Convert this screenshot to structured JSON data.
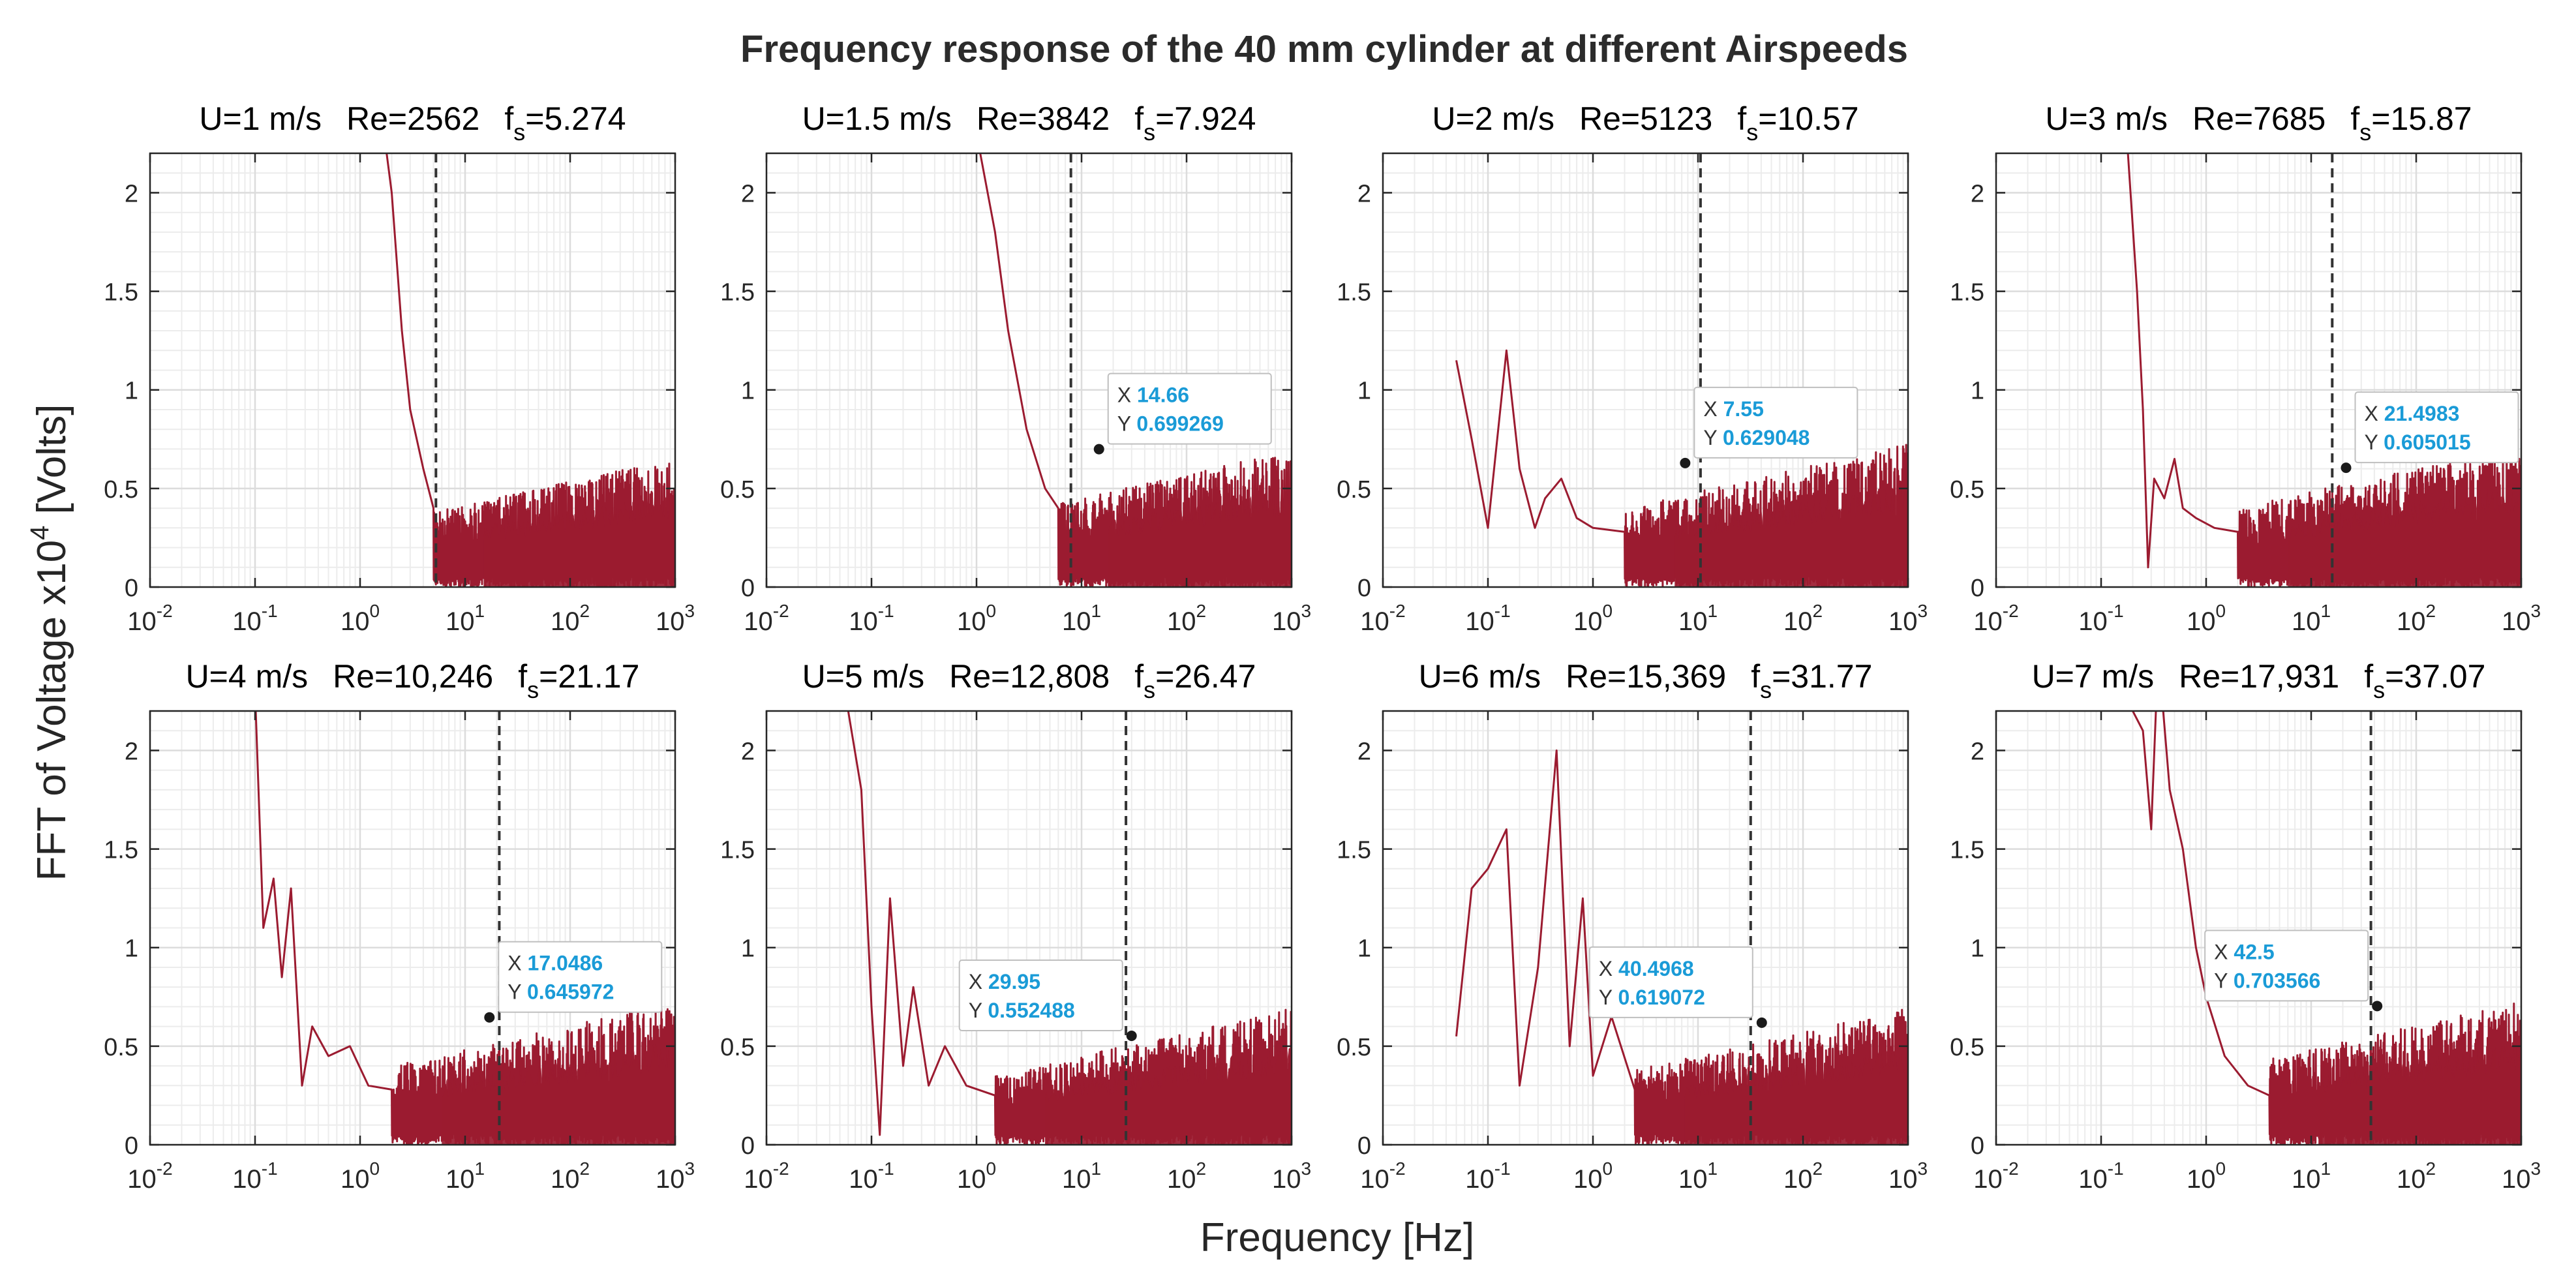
{
  "colors": {
    "line": "#9b1b30",
    "tip_value": "#1a9bd7",
    "tip_key": "#333333",
    "grid": "#dcdcdc",
    "axis": "#262626"
  },
  "chart_data": {
    "type": "line",
    "title": "Frequency response of the 40 mm cylinder at different Airspeeds",
    "xlabel": "Frequency [Hz]",
    "ylabel": {
      "pre": "FFT of Voltage x10",
      "sup": "4",
      "post": " [Volts]"
    },
    "xscale": "log",
    "xlim": [
      0.01,
      1000
    ],
    "ylim": [
      0,
      2.2
    ],
    "xticks": [
      {
        "b": "10",
        "e": "-2"
      },
      {
        "b": "10",
        "e": "-1"
      },
      {
        "b": "10",
        "e": "0"
      },
      {
        "b": "10",
        "e": "1"
      },
      {
        "b": "10",
        "e": "2"
      },
      {
        "b": "10",
        "e": "3"
      }
    ],
    "yticks": [
      "0",
      "0.5",
      "1",
      "1.5",
      "2"
    ],
    "panels": [
      {
        "speed": "U=1 m/s",
        "re": "Re=2562",
        "fs_val": "=5.274",
        "fs": 5.274,
        "tip": null,
        "low": [
          [
            0.8,
            3.0
          ],
          [
            1.0,
            2.9
          ],
          [
            1.3,
            2.6
          ],
          [
            1.6,
            2.4
          ],
          [
            2.0,
            2.0
          ],
          [
            2.5,
            1.3
          ],
          [
            3.0,
            0.9
          ],
          [
            4.0,
            0.6
          ],
          [
            5.0,
            0.4
          ]
        ],
        "noise": 0.18
      },
      {
        "speed": "U=1.5 m/s",
        "re": "Re=3842",
        "fs_val": "=7.924",
        "fs": 7.924,
        "tip": {
          "x": "14.66",
          "y": "0.699269",
          "fx": 14.66,
          "fy": 0.699269
        },
        "low": [
          [
            0.3,
            3.0
          ],
          [
            0.45,
            2.9
          ],
          [
            0.6,
            2.8
          ],
          [
            0.8,
            2.7
          ],
          [
            1.0,
            2.3
          ],
          [
            1.5,
            1.8
          ],
          [
            2.0,
            1.3
          ],
          [
            3.0,
            0.8
          ],
          [
            4.5,
            0.5
          ],
          [
            6.0,
            0.4
          ]
        ],
        "noise": 0.2
      },
      {
        "speed": "U=2 m/s",
        "re": "Re=5123",
        "fs_val": "=10.57",
        "fs": 10.57,
        "tip": {
          "x": "7.55",
          "y": "0.629048",
          "fx": 7.55,
          "fy": 0.629048
        },
        "low": [
          [
            0.05,
            1.15
          ],
          [
            0.07,
            0.75
          ],
          [
            0.1,
            0.3
          ],
          [
            0.15,
            1.2
          ],
          [
            0.2,
            0.6
          ],
          [
            0.28,
            0.3
          ],
          [
            0.35,
            0.45
          ],
          [
            0.5,
            0.55
          ],
          [
            0.7,
            0.35
          ],
          [
            1.0,
            0.3
          ],
          [
            2.0,
            0.28
          ]
        ],
        "noise": 0.22
      },
      {
        "speed": "U=3 m/s",
        "re": "Re=7685",
        "fs_val": "=15.87",
        "fs": 15.87,
        "tip": {
          "x": "21.4983",
          "y": "0.605015",
          "fx": 21.4983,
          "fy": 0.605015
        },
        "low": [
          [
            0.18,
            2.2
          ],
          [
            0.22,
            1.5
          ],
          [
            0.25,
            0.9
          ],
          [
            0.28,
            0.1
          ],
          [
            0.32,
            0.55
          ],
          [
            0.4,
            0.45
          ],
          [
            0.5,
            0.65
          ],
          [
            0.6,
            0.4
          ],
          [
            0.8,
            0.35
          ],
          [
            1.2,
            0.3
          ],
          [
            2.0,
            0.28
          ]
        ],
        "noise": 0.22
      },
      {
        "speed": "U=4 m/s",
        "re": "Re=10,246",
        "fs_val": "=21.17",
        "fs": 21.17,
        "tip": {
          "x": "17.0486",
          "y": "0.645972",
          "fx": 17.0486,
          "fy": 0.645972
        },
        "low": [
          [
            0.1,
            2.3
          ],
          [
            0.12,
            1.1
          ],
          [
            0.15,
            1.35
          ],
          [
            0.18,
            0.85
          ],
          [
            0.22,
            1.3
          ],
          [
            0.28,
            0.3
          ],
          [
            0.35,
            0.6
          ],
          [
            0.5,
            0.45
          ],
          [
            0.8,
            0.5
          ],
          [
            1.2,
            0.3
          ],
          [
            2.0,
            0.28
          ]
        ],
        "noise": 0.22
      },
      {
        "speed": "U=5 m/s",
        "re": "Re=12,808",
        "fs_val": "=26.47",
        "fs": 26.47,
        "tip": {
          "x": "29.95",
          "y": "0.552488",
          "fx": 29.95,
          "fy": 0.552488
        },
        "low": [
          [
            0.06,
            2.2
          ],
          [
            0.08,
            1.8
          ],
          [
            0.1,
            0.7
          ],
          [
            0.12,
            0.05
          ],
          [
            0.15,
            1.25
          ],
          [
            0.2,
            0.4
          ],
          [
            0.25,
            0.8
          ],
          [
            0.35,
            0.3
          ],
          [
            0.5,
            0.5
          ],
          [
            0.8,
            0.3
          ],
          [
            1.5,
            0.25
          ]
        ],
        "noise": 0.2
      },
      {
        "speed": "U=6 m/s",
        "re": "Re=15,369",
        "fs_val": "=31.77",
        "fs": 31.77,
        "tip": {
          "x": "40.4968",
          "y": "0.619072",
          "fx": 40.4968,
          "fy": 0.619072
        },
        "low": [
          [
            0.05,
            0.55
          ],
          [
            0.07,
            1.3
          ],
          [
            0.1,
            1.4
          ],
          [
            0.15,
            1.6
          ],
          [
            0.2,
            0.3
          ],
          [
            0.3,
            0.9
          ],
          [
            0.45,
            2.0
          ],
          [
            0.6,
            0.5
          ],
          [
            0.8,
            1.25
          ],
          [
            1.0,
            0.35
          ],
          [
            1.5,
            0.65
          ],
          [
            2.5,
            0.28
          ]
        ],
        "noise": 0.2
      },
      {
        "speed": "U=7 m/s",
        "re": "Re=17,931",
        "fs_val": "=37.07",
        "fs": 37.07,
        "tip": {
          "x": "42.5",
          "y": "0.703566",
          "fx": 42.5,
          "fy": 0.703566
        },
        "low": [
          [
            0.2,
            2.2
          ],
          [
            0.25,
            2.1
          ],
          [
            0.3,
            1.6
          ],
          [
            0.35,
            2.5
          ],
          [
            0.45,
            1.8
          ],
          [
            0.6,
            1.5
          ],
          [
            0.8,
            1.0
          ],
          [
            1.0,
            0.75
          ],
          [
            1.5,
            0.45
          ],
          [
            2.5,
            0.3
          ],
          [
            4.0,
            0.25
          ]
        ],
        "noise": 0.22
      }
    ]
  }
}
